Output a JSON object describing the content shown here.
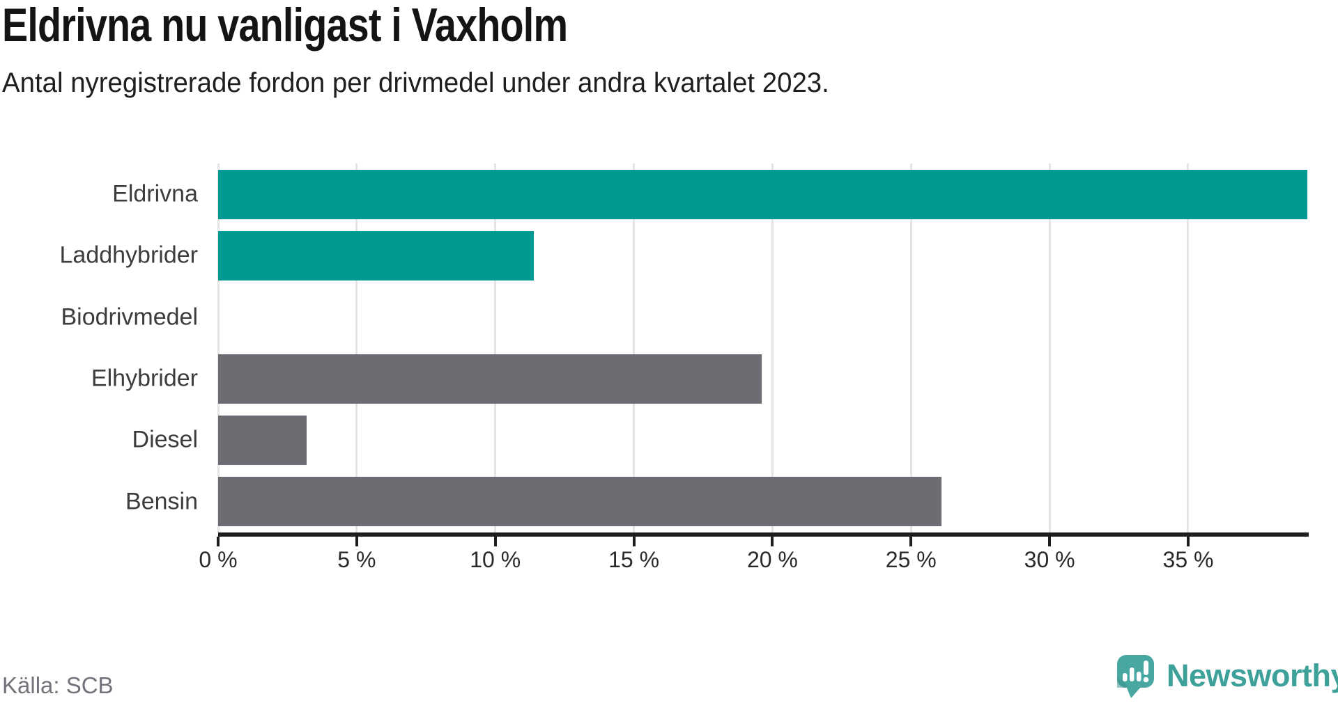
{
  "chart_data": {
    "type": "bar",
    "orientation": "horizontal",
    "title": "Eldrivna nu vanligast i Vaxholm",
    "subtitle": "Antal nyregistrerade fordon per drivmedel under andra kvartalet 2023.",
    "categories": [
      "Eldrivna",
      "Laddhybrider",
      "Biodrivmedel",
      "Elhybrider",
      "Diesel",
      "Bensin"
    ],
    "values": [
      39.3,
      11.4,
      0,
      19.6,
      3.2,
      26.1
    ],
    "unit": "%",
    "bar_colors": [
      "#009a92",
      "#009a92",
      "#009a92",
      "#6c6c72",
      "#6c6c72",
      "#6c6c72"
    ],
    "xlim": [
      0,
      39.3
    ],
    "x_ticks": [
      0,
      5,
      10,
      15,
      20,
      25,
      30,
      35
    ],
    "x_tick_labels": [
      "0 %",
      "5 %",
      "10 %",
      "15 %",
      "20 %",
      "25 %",
      "30 %",
      "35 %"
    ],
    "grid": true,
    "legend": "none"
  },
  "footer": {
    "source": "Källa: SCB"
  },
  "branding": {
    "logo_text": "Newsworthy",
    "logo_icon": "newsworthy-chart-bubble-icon"
  },
  "colors": {
    "accent_teal": "#009a92",
    "neutral_gray": "#6c6c72",
    "gridline": "#e4e4e4",
    "axis": "#1e1e1e",
    "title_text": "#141414",
    "category_text": "#3c3c3c",
    "source_text": "#72727a",
    "logo_teal": "#48a7a0",
    "logo_text_teal": "#3da19a"
  }
}
